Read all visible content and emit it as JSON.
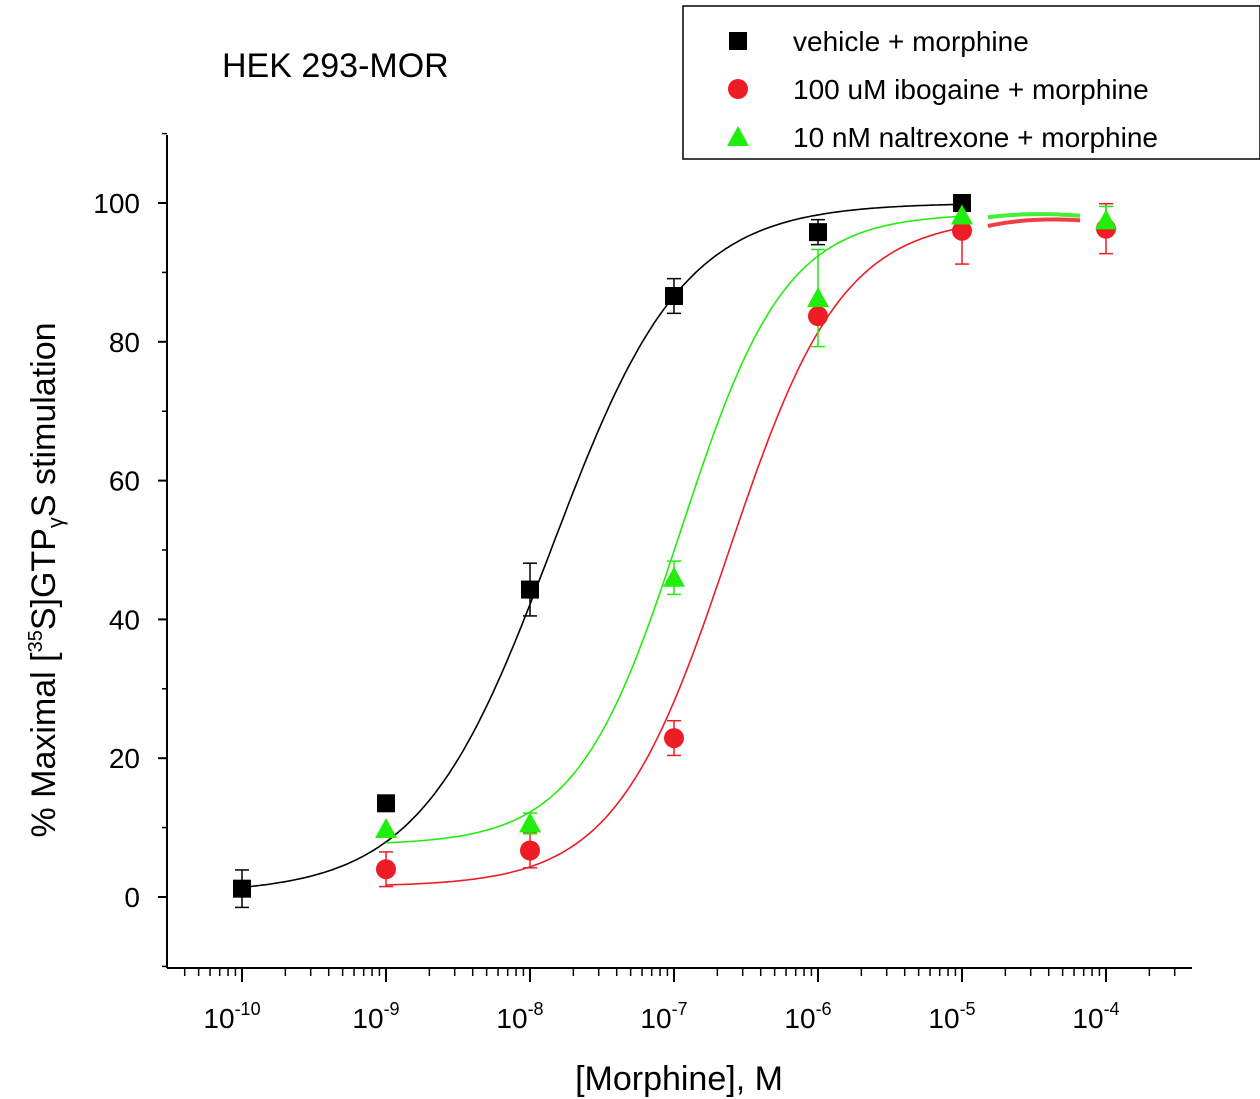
{
  "chart_data": {
    "type": "scatter",
    "title": "HEK 293-MOR",
    "xlabel": "[Morphine], M",
    "ylabel_parts": {
      "prefix": "% Maximal [",
      "sup": "35",
      "middle": "S]GTP",
      "sub": "γ",
      "suffix": "S stimulation"
    },
    "x_scale": "log",
    "xlim": [
      1e-10,
      0.0001
    ],
    "ylim": [
      -10,
      110
    ],
    "x_ticks": [
      {
        "base": "10",
        "exp": "-10"
      },
      {
        "base": "10",
        "exp": "-9"
      },
      {
        "base": "10",
        "exp": "-8"
      },
      {
        "base": "10",
        "exp": "-7"
      },
      {
        "base": "10",
        "exp": "-6"
      },
      {
        "base": "10",
        "exp": "-5"
      },
      {
        "base": "10",
        "exp": "-4"
      }
    ],
    "y_ticks": [
      "0",
      "20",
      "40",
      "60",
      "80",
      "100"
    ],
    "legend_position": "top-right",
    "series": [
      {
        "name": "vehicle + morphine",
        "color": "#000000",
        "marker": "square",
        "x": [
          1e-10,
          1e-09,
          1e-08,
          1e-07,
          1e-06,
          1e-05
        ],
        "y": [
          1.2,
          13.5,
          44.3,
          86.6,
          95.8,
          100.0
        ],
        "err": [
          2.7,
          0,
          3.8,
          2.5,
          1.8,
          0
        ],
        "fit": {
          "bottom": 0.5,
          "top": 100.0,
          "log_ec50": -7.85,
          "hill": 0.95
        }
      },
      {
        "name": "100 uM ibogaine + morphine",
        "color": "#ee1c25",
        "marker": "circle",
        "x": [
          1e-09,
          1e-08,
          1e-07,
          1e-06,
          1e-05,
          0.0001
        ],
        "y": [
          4.0,
          6.7,
          22.9,
          83.7,
          96.0,
          96.3
        ],
        "err": [
          2.5,
          2.5,
          2.5,
          0,
          4.8,
          3.6
        ],
        "fit": {
          "bottom": 1.5,
          "top": 98.0,
          "log_ec50": -6.62,
          "hill": 1.1
        }
      },
      {
        "name": "10 nM naltrexone + morphine",
        "color": "#22ee0e",
        "marker": "triangle",
        "x": [
          1e-09,
          1e-08,
          1e-07,
          1e-06,
          1e-05,
          0.0001
        ],
        "y": [
          9.8,
          10.6,
          46.0,
          86.3,
          98.2,
          97.5
        ],
        "err": [
          0,
          1.5,
          2.4,
          7.0,
          0,
          2.0
        ],
        "fit": {
          "bottom": 7.5,
          "top": 98.5,
          "log_ec50": -6.95,
          "hill": 1.2
        }
      }
    ]
  }
}
